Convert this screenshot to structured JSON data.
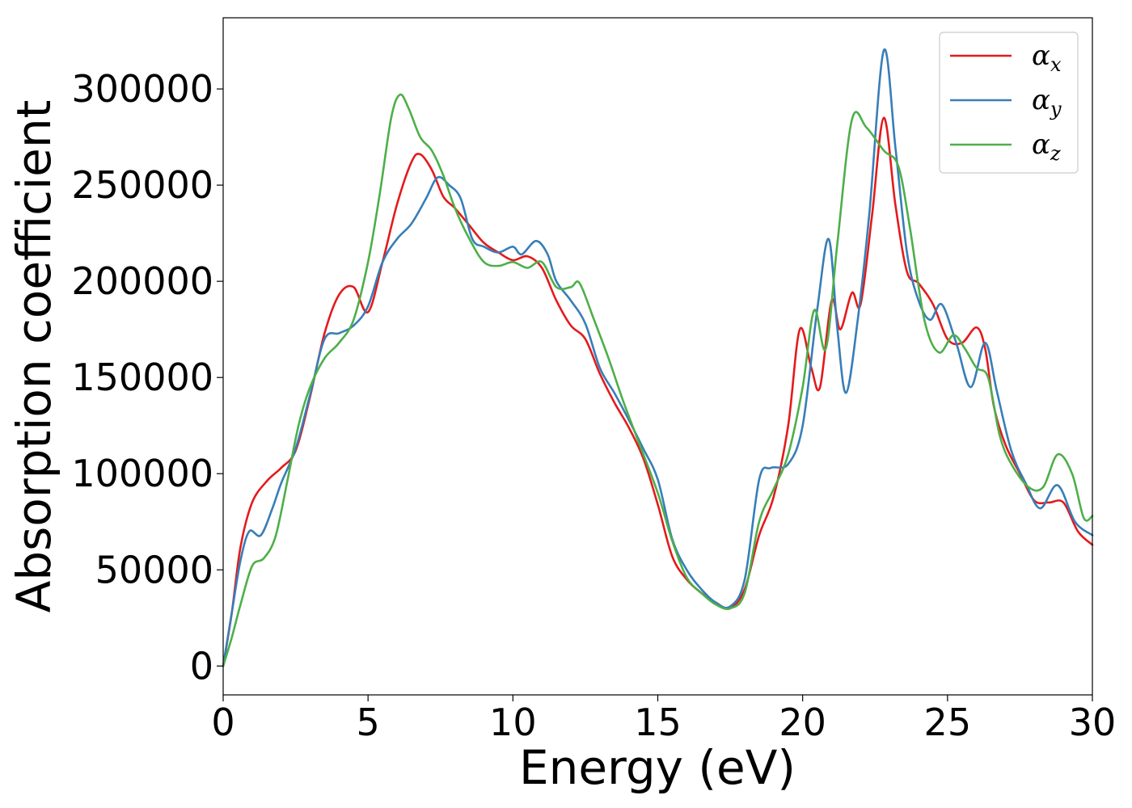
{
  "chart_data": {
    "type": "line",
    "xlabel": "Energy (eV)",
    "ylabel": "Absorption coefficient",
    "xlim": [
      0,
      30
    ],
    "ylim": [
      -15000,
      337000
    ],
    "x_ticks": [
      0,
      5,
      10,
      15,
      20,
      25,
      30
    ],
    "x_tick_labels": [
      "0",
      "5",
      "10",
      "15",
      "20",
      "25",
      "30"
    ],
    "y_ticks": [
      0,
      50000,
      100000,
      150000,
      200000,
      250000,
      300000
    ],
    "y_tick_labels": [
      "0",
      "50000",
      "100000",
      "150000",
      "200000",
      "250000",
      "300000"
    ],
    "grid": false,
    "legend_position": "top-right",
    "series": [
      {
        "name": "α",
        "subscript": "x",
        "color": "#e41a1c",
        "x": [
          0,
          0.3,
          0.6,
          1,
          1.5,
          2,
          2.5,
          3,
          3.5,
          4,
          4.5,
          5,
          5.5,
          6,
          6.5,
          6.8,
          7.2,
          7.6,
          8,
          8.5,
          9,
          9.5,
          10,
          10.5,
          11,
          11.5,
          12,
          12.5,
          13,
          13.5,
          14,
          14.5,
          15,
          15.5,
          16,
          16.5,
          17,
          17.5,
          18,
          18.5,
          19,
          19.5,
          19.9,
          20.3,
          20.6,
          21,
          21.3,
          21.7,
          22,
          22.4,
          22.8,
          23.2,
          23.6,
          24,
          24.5,
          25,
          25.5,
          26,
          26.3,
          26.6,
          27,
          27.5,
          28,
          28.5,
          29,
          29.5,
          30
        ],
        "values": [
          0,
          28000,
          62000,
          85000,
          96000,
          103000,
          112000,
          140000,
          173000,
          193000,
          197000,
          184000,
          210000,
          240000,
          262000,
          266000,
          258000,
          244000,
          238000,
          229000,
          220000,
          215000,
          211000,
          213000,
          207000,
          190000,
          177000,
          170000,
          152000,
          137000,
          124000,
          108000,
          84000,
          57000,
          45000,
          38000,
          33000,
          30000,
          40000,
          68000,
          88000,
          125000,
          175000,
          155000,
          145000,
          190000,
          175000,
          194000,
          188000,
          235000,
          285000,
          240000,
          205000,
          199000,
          188000,
          170000,
          168000,
          176000,
          165000,
          135000,
          115000,
          100000,
          86000,
          85000,
          85000,
          70000,
          63000
        ]
      },
      {
        "name": "α",
        "subscript": "y",
        "color": "#377eb8",
        "x": [
          0,
          0.3,
          0.6,
          0.9,
          1.3,
          1.7,
          2,
          2.5,
          3,
          3.5,
          4,
          4.5,
          5,
          5.5,
          6,
          6.5,
          7,
          7.4,
          7.8,
          8.2,
          8.6,
          9,
          9.5,
          10,
          10.3,
          10.8,
          11.2,
          11.5,
          12,
          12.5,
          13,
          13.5,
          14,
          14.5,
          15,
          15.5,
          16,
          16.5,
          17,
          17.5,
          18,
          18.5,
          18.9,
          19.5,
          20,
          20.5,
          20.9,
          21.2,
          21.5,
          21.9,
          22.3,
          22.8,
          23.2,
          23.6,
          24,
          24.4,
          24.8,
          25.3,
          25.8,
          26.3,
          26.7,
          27.2,
          27.7,
          28.2,
          28.8,
          29.4,
          30
        ],
        "values": [
          0,
          28000,
          55000,
          70000,
          68000,
          82000,
          95000,
          113000,
          141000,
          170000,
          173000,
          177000,
          187000,
          210000,
          222000,
          230000,
          243000,
          254000,
          250000,
          243000,
          222000,
          218000,
          215000,
          218000,
          214000,
          221000,
          214000,
          200000,
          190000,
          178000,
          155000,
          142000,
          128000,
          113000,
          97000,
          66000,
          50000,
          40000,
          33000,
          31000,
          45000,
          97000,
          103000,
          105000,
          125000,
          185000,
          222000,
          175000,
          142000,
          180000,
          235000,
          320000,
          270000,
          215000,
          190000,
          180000,
          188000,
          168000,
          145000,
          168000,
          143000,
          112000,
          95000,
          82000,
          94000,
          75000,
          68000
        ]
      },
      {
        "name": "α",
        "subscript": "z",
        "color": "#4daf4a",
        "x": [
          0,
          0.3,
          0.6,
          1,
          1.4,
          1.8,
          2.2,
          2.6,
          3,
          3.5,
          4,
          4.5,
          5,
          5.4,
          5.8,
          6.1,
          6.4,
          6.8,
          7.2,
          7.6,
          8,
          8.5,
          9,
          9.5,
          10,
          10.5,
          11,
          11.5,
          12,
          12.3,
          12.8,
          13.3,
          13.8,
          14.3,
          15,
          15.5,
          16,
          16.5,
          17,
          17.5,
          18,
          18.5,
          19,
          19.5,
          20,
          20.4,
          20.8,
          21.2,
          21.7,
          22.2,
          22.8,
          23.3,
          23.7,
          24.2,
          24.7,
          25.2,
          25.6,
          26,
          26.4,
          26.8,
          27.2,
          27.8,
          28.3,
          28.8,
          29.3,
          29.7,
          30
        ],
        "values": [
          0,
          15000,
          32000,
          52000,
          56000,
          67000,
          95000,
          125000,
          145000,
          160000,
          168000,
          180000,
          210000,
          245000,
          285000,
          297000,
          290000,
          275000,
          268000,
          255000,
          238000,
          222000,
          210000,
          208000,
          210000,
          207000,
          210000,
          197000,
          197000,
          199000,
          180000,
          160000,
          138000,
          118000,
          90000,
          65000,
          46000,
          38000,
          32000,
          30000,
          38000,
          75000,
          92000,
          110000,
          145000,
          185000,
          165000,
          220000,
          284000,
          280000,
          268000,
          260000,
          228000,
          180000,
          163000,
          172000,
          165000,
          155000,
          150000,
          120000,
          105000,
          93000,
          93000,
          110000,
          100000,
          77000,
          78000
        ]
      }
    ]
  }
}
